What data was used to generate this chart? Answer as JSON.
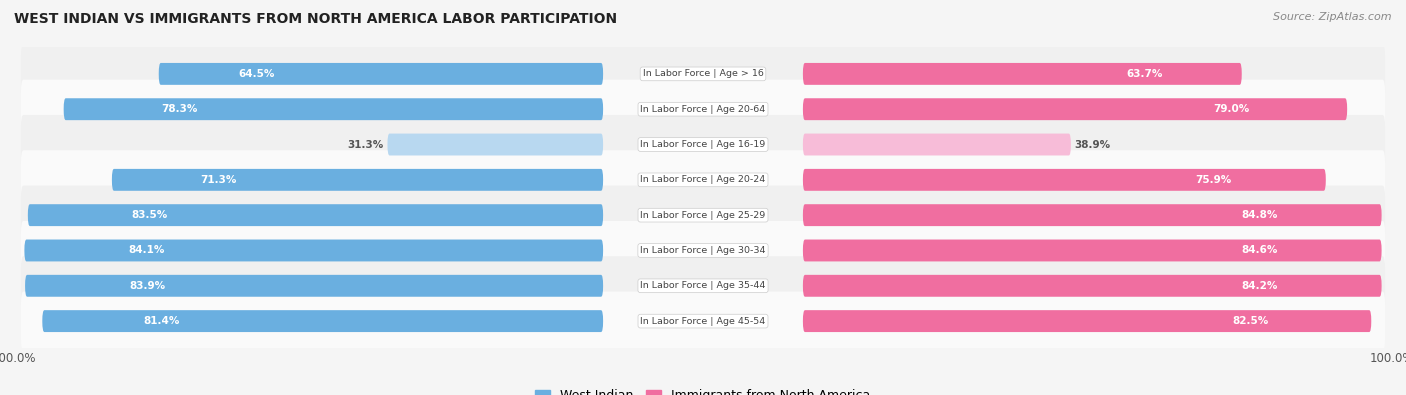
{
  "title": "WEST INDIAN VS IMMIGRANTS FROM NORTH AMERICA LABOR PARTICIPATION",
  "source": "Source: ZipAtlas.com",
  "categories": [
    "In Labor Force | Age > 16",
    "In Labor Force | Age 20-64",
    "In Labor Force | Age 16-19",
    "In Labor Force | Age 20-24",
    "In Labor Force | Age 25-29",
    "In Labor Force | Age 30-34",
    "In Labor Force | Age 35-44",
    "In Labor Force | Age 45-54"
  ],
  "west_indian": [
    64.5,
    78.3,
    31.3,
    71.3,
    83.5,
    84.1,
    83.9,
    81.4
  ],
  "north_america": [
    63.7,
    79.0,
    38.9,
    75.9,
    84.8,
    84.6,
    84.2,
    82.5
  ],
  "west_indian_color": "#6aafe0",
  "west_indian_light_color": "#b8d8f0",
  "north_america_color": "#f06ea0",
  "north_america_light_color": "#f7bcd8",
  "row_bg_colors": [
    "#f0f0f0",
    "#fafafa",
    "#f0f0f0",
    "#fafafa",
    "#f0f0f0",
    "#fafafa",
    "#f0f0f0",
    "#fafafa"
  ],
  "background_color": "#f5f5f5",
  "max_value": 100.0,
  "legend_west_indian": "West Indian",
  "legend_north_america": "Immigrants from North America",
  "low_threshold": 50
}
